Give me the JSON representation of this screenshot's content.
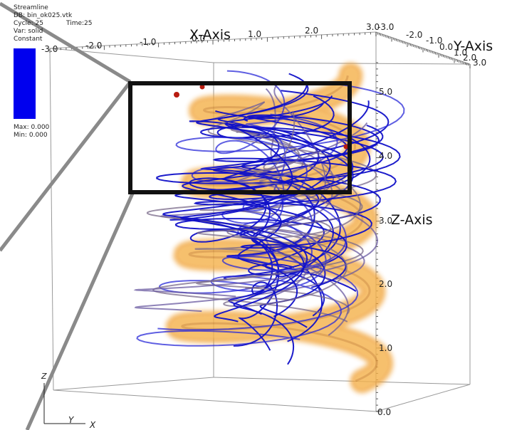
{
  "legend": {
    "plot_name": "Streamline",
    "db_label": "DB: bin_ok025.vtk",
    "cycle_label": "Cycle: 25",
    "time_label": "Time:25",
    "var_label": "Var: solid",
    "constant_label": "Constant",
    "max_label": "Max: 0.000",
    "min_label": "Min: 0.000",
    "swatch_color": "#0000ee"
  },
  "axes": {
    "x_title": "X-Axis",
    "y_title": "Y-Axis",
    "z_title": "Z-Axis",
    "x_ticks": [
      "-3.0",
      "-2.0",
      "-1.0",
      "0.0",
      "1.0",
      "2.0",
      "3.0"
    ],
    "y_ticks": [
      "-3.0",
      "-2.0",
      "-1.0",
      "0.0",
      "1.0",
      "2.0",
      "3.0"
    ],
    "z_ticks": [
      "0.0",
      "1.0",
      "2.0",
      "3.0",
      "4.0",
      "5.0"
    ]
  },
  "triad": {
    "z_label": "Z",
    "y_label": "Y",
    "x_label": "X"
  },
  "colors": {
    "surface": "#f0a030",
    "streamline": "#1010c8",
    "seed": "#b81c10",
    "zoom_box": "#111111",
    "zoom_lines": "#8a8a8a",
    "bbox": "#999999"
  }
}
